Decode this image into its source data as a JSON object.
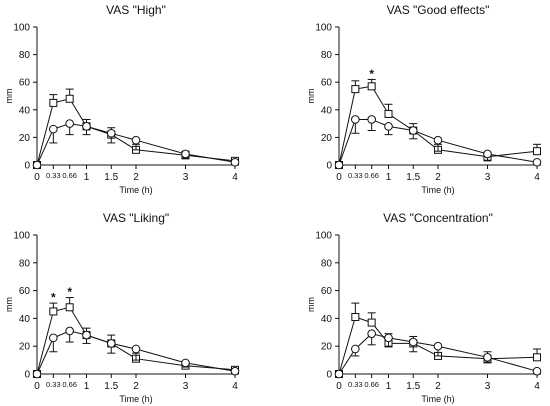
{
  "colors": {
    "ink": "#111111",
    "marker_fill": "#ffffff"
  },
  "chart_data": [
    {
      "type": "line",
      "title": "VAS \"High\"",
      "xlabel": "Time (h)",
      "ylabel": "mm",
      "xlim": [
        0,
        4
      ],
      "ylim": [
        0,
        100
      ],
      "xticks": [
        0,
        0.33,
        0.66,
        1,
        1.5,
        2,
        3,
        4
      ],
      "xtick_labels": [
        "0",
        "0.33",
        "0.66",
        "1",
        "1.5",
        "2",
        "3",
        "4"
      ],
      "yticks": [
        0,
        20,
        40,
        60,
        80,
        100
      ],
      "series": [
        {
          "marker": "square",
          "x": [
            0,
            0.33,
            0.66,
            1,
            1.5,
            2,
            3,
            4
          ],
          "y": [
            0,
            45,
            48,
            28,
            22,
            11,
            7,
            3
          ],
          "err": [
            0,
            6,
            7,
            5,
            5,
            4,
            3,
            2
          ]
        },
        {
          "marker": "circle",
          "x": [
            0,
            0.33,
            0.66,
            1,
            1.5,
            2,
            3,
            4
          ],
          "y": [
            0,
            26,
            30,
            28,
            23,
            18,
            8,
            2
          ],
          "err": [
            0,
            10,
            8,
            6,
            7,
            7,
            3,
            2
          ]
        }
      ],
      "significance": []
    },
    {
      "type": "line",
      "title": "VAS \"Good effects\"",
      "xlabel": "Time (h)",
      "ylabel": "mm",
      "xlim": [
        0,
        4
      ],
      "ylim": [
        0,
        100
      ],
      "xticks": [
        0,
        0.33,
        0.66,
        1,
        1.5,
        2,
        3,
        4
      ],
      "xtick_labels": [
        "0",
        "0.33",
        "0.66",
        "1",
        "1.5",
        "2",
        "3",
        "4"
      ],
      "yticks": [
        0,
        20,
        40,
        60,
        80,
        100
      ],
      "series": [
        {
          "marker": "square",
          "x": [
            0,
            0.33,
            0.66,
            1,
            1.5,
            2,
            3,
            4
          ],
          "y": [
            0,
            55,
            57,
            37,
            25,
            11,
            6,
            10
          ],
          "err": [
            0,
            6,
            5,
            7,
            5,
            4,
            3,
            5
          ]
        },
        {
          "marker": "circle",
          "x": [
            0,
            0.33,
            0.66,
            1,
            1.5,
            2,
            3,
            4
          ],
          "y": [
            0,
            33,
            33,
            28,
            25,
            18,
            8,
            2
          ],
          "err": [
            0,
            10,
            8,
            6,
            6,
            8,
            5,
            2
          ]
        }
      ],
      "significance": [
        {
          "x": 0.66,
          "y": 66,
          "label": "*"
        }
      ]
    },
    {
      "type": "line",
      "title": "VAS \"Liking\"",
      "xlabel": "Time (h)",
      "ylabel": "mm",
      "xlim": [
        0,
        4
      ],
      "ylim": [
        0,
        100
      ],
      "xticks": [
        0,
        0.33,
        0.66,
        1,
        1.5,
        2,
        3,
        4
      ],
      "xtick_labels": [
        "0",
        "0.33",
        "0.66",
        "1",
        "1.5",
        "2",
        "3",
        "4"
      ],
      "yticks": [
        0,
        20,
        40,
        60,
        80,
        100
      ],
      "series": [
        {
          "marker": "square",
          "x": [
            0,
            0.33,
            0.66,
            1,
            1.5,
            2,
            3,
            4
          ],
          "y": [
            0,
            45,
            48,
            28,
            22,
            11,
            6,
            3
          ],
          "err": [
            0,
            6,
            7,
            5,
            6,
            4,
            3,
            2
          ]
        },
        {
          "marker": "circle",
          "x": [
            0,
            0.33,
            0.66,
            1,
            1.5,
            2,
            3,
            4
          ],
          "y": [
            0,
            26,
            31,
            28,
            22,
            18,
            8,
            2
          ],
          "err": [
            0,
            10,
            8,
            6,
            7,
            8,
            3,
            2
          ]
        }
      ],
      "significance": [
        {
          "x": 0.33,
          "y": 55,
          "label": "*"
        },
        {
          "x": 0.66,
          "y": 59,
          "label": "*"
        }
      ]
    },
    {
      "type": "line",
      "title": "VAS \"Concentration\"",
      "xlabel": "Time (h)",
      "ylabel": "mm",
      "xlim": [
        0,
        4
      ],
      "ylim": [
        0,
        100
      ],
      "xticks": [
        0,
        0.33,
        0.66,
        1,
        1.5,
        2,
        3,
        4
      ],
      "xtick_labels": [
        "0",
        "0.33",
        "0.66",
        "1",
        "1.5",
        "2",
        "3",
        "4"
      ],
      "yticks": [
        0,
        20,
        40,
        60,
        80,
        100
      ],
      "series": [
        {
          "marker": "square",
          "x": [
            0,
            0.33,
            0.66,
            1,
            1.5,
            2,
            3,
            4
          ],
          "y": [
            0,
            41,
            37,
            22,
            22,
            13,
            11,
            12
          ],
          "err": [
            0,
            10,
            7,
            7,
            5,
            6,
            5,
            6
          ]
        },
        {
          "marker": "circle",
          "x": [
            0,
            0.33,
            0.66,
            1,
            1.5,
            2,
            3,
            4
          ],
          "y": [
            0,
            18,
            29,
            26,
            23,
            20,
            12,
            2
          ],
          "err": [
            0,
            5,
            8,
            6,
            7,
            7,
            4,
            2
          ]
        }
      ],
      "significance": []
    }
  ]
}
